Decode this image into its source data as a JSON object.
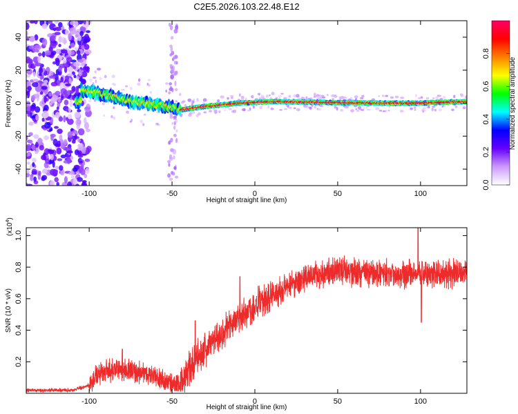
{
  "chart_data": [
    {
      "type": "heatmap",
      "title": "C2E5.2026.103.22.48.E12",
      "xlabel": "Height of straight line (km)",
      "ylabel": "Frequency (Hz)",
      "xlim": [
        -138,
        128
      ],
      "ylim": [
        -50,
        50
      ],
      "xticks": [
        -100,
        -50,
        0,
        50,
        100
      ],
      "yticks": [
        -40,
        -20,
        0,
        20,
        40
      ],
      "colorbar": {
        "label": "Normalized spectral amplitude",
        "range": [
          0.0,
          1.0
        ],
        "ticks": [
          0.0,
          0.2,
          0.4,
          0.6,
          0.8
        ],
        "colormap": [
          "#ffffff",
          "#cc99ff",
          "#6600ff",
          "#0000ff",
          "#00ffff",
          "#00ff00",
          "#ffff00",
          "#ff8000",
          "#ff0000",
          "#ff0066"
        ]
      },
      "ridge": {
        "description_points": [
          {
            "x": -105,
            "freq": 8
          },
          {
            "x": -90,
            "freq": 5
          },
          {
            "x": -75,
            "freq": 1
          },
          {
            "x": -60,
            "freq": -1
          },
          {
            "x": -48,
            "freq": -3
          },
          {
            "x": -45,
            "freq": -4
          },
          {
            "x": -30,
            "freq": -2
          },
          {
            "x": -10,
            "freq": 0
          },
          {
            "x": 10,
            "freq": 1
          },
          {
            "x": 40,
            "freq": 0.5
          },
          {
            "x": 80,
            "freq": 0
          },
          {
            "x": 100,
            "freq": 0
          },
          {
            "x": 128,
            "freq": 1
          }
        ]
      },
      "noise_region_x": [
        -138,
        -100
      ]
    },
    {
      "type": "line",
      "title": "",
      "xlabel": "Height of straight line (km)",
      "ylabel": "SNR (10 * v/v)",
      "y_multiplier": "(x10^4)",
      "y_multiplier_base": "(x10",
      "y_multiplier_exp": "4",
      "y_multiplier_close": ")",
      "xlim": [
        -138,
        128
      ],
      "ylim": [
        0,
        1.05
      ],
      "xticks": [
        -100,
        -50,
        0,
        50,
        100
      ],
      "yticks": [
        0.2,
        0.4,
        0.6,
        0.8,
        1.0
      ],
      "series": [
        {
          "name": "SNR",
          "color": "#ee2b2b",
          "anchors": [
            {
              "x": -138,
              "y": 0.02
            },
            {
              "x": -110,
              "y": 0.02
            },
            {
              "x": -100,
              "y": 0.05
            },
            {
              "x": -95,
              "y": 0.12
            },
            {
              "x": -85,
              "y": 0.15
            },
            {
              "x": -75,
              "y": 0.14
            },
            {
              "x": -65,
              "y": 0.12
            },
            {
              "x": -55,
              "y": 0.08
            },
            {
              "x": -45,
              "y": 0.05
            },
            {
              "x": -40,
              "y": 0.15
            },
            {
              "x": -30,
              "y": 0.28
            },
            {
              "x": -20,
              "y": 0.38
            },
            {
              "x": -10,
              "y": 0.48
            },
            {
              "x": 0,
              "y": 0.55
            },
            {
              "x": 10,
              "y": 0.62
            },
            {
              "x": 20,
              "y": 0.68
            },
            {
              "x": 30,
              "y": 0.73
            },
            {
              "x": 40,
              "y": 0.76
            },
            {
              "x": 50,
              "y": 0.78
            },
            {
              "x": 60,
              "y": 0.77
            },
            {
              "x": 70,
              "y": 0.76
            },
            {
              "x": 80,
              "y": 0.76
            },
            {
              "x": 90,
              "y": 0.76
            },
            {
              "x": 100,
              "y": 0.76
            },
            {
              "x": 110,
              "y": 0.75
            },
            {
              "x": 128,
              "y": 0.76
            }
          ],
          "spikes": [
            {
              "x": 98.5,
              "y": 1.05
            },
            {
              "x": 100.5,
              "y": 0.45
            },
            {
              "x": -9,
              "y": 0.74
            },
            {
              "x": -36,
              "y": 0.46
            },
            {
              "x": -80,
              "y": 0.28
            }
          ]
        }
      ]
    }
  ]
}
